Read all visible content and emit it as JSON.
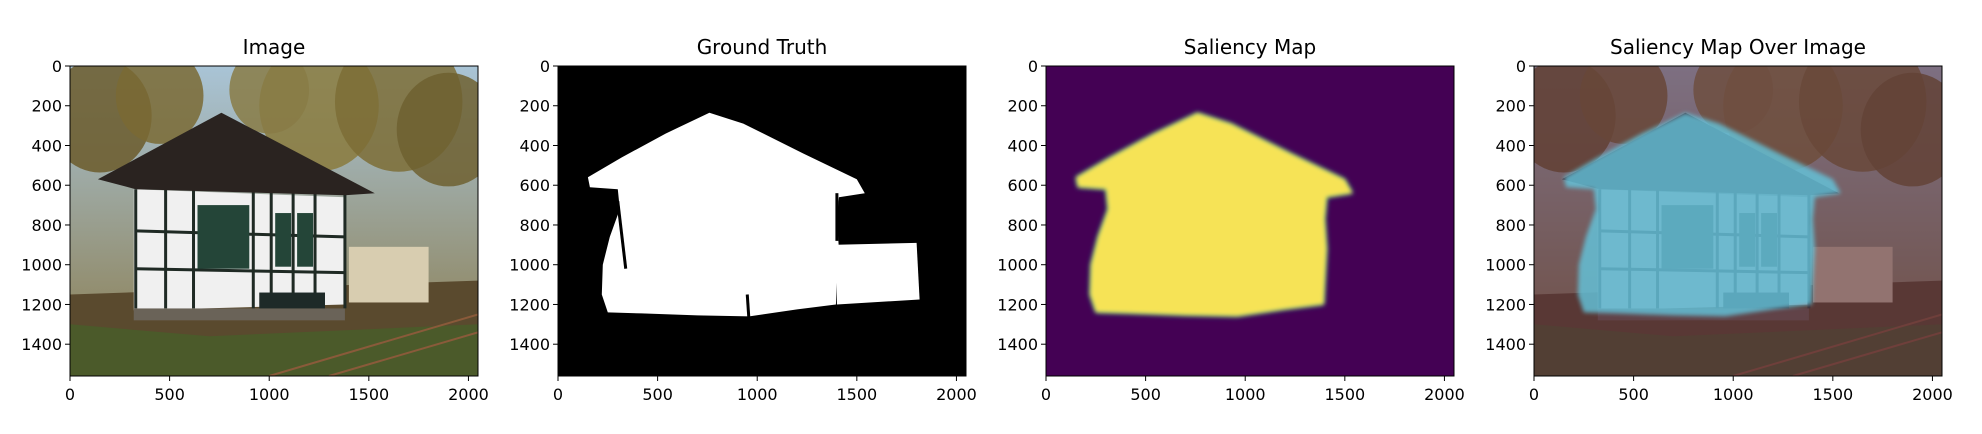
{
  "chart_data": [
    {
      "type": "heatmap",
      "title": "Image",
      "content": "photo",
      "xticks": [
        "0",
        "500",
        "1000",
        "1500",
        "2000"
      ],
      "yticks": [
        "0",
        "200",
        "400",
        "600",
        "800",
        "1000",
        "1200",
        "1400"
      ],
      "xlim": [
        0,
        2048
      ],
      "ylim": [
        1560,
        0
      ]
    },
    {
      "type": "heatmap",
      "title": "Ground Truth",
      "content": "mask",
      "colors": {
        "background": "#000000",
        "foreground": "#ffffff"
      },
      "xticks": [
        "0",
        "500",
        "1000",
        "1500",
        "2000"
      ],
      "yticks": [
        "0",
        "200",
        "400",
        "600",
        "800",
        "1000",
        "1200",
        "1400"
      ],
      "xlim": [
        0,
        2048
      ],
      "ylim": [
        1560,
        0
      ]
    },
    {
      "type": "heatmap",
      "title": "Saliency Map",
      "content": "saliency",
      "colors": {
        "low": "#440154",
        "high": "#f6e356",
        "edge": "#21918c"
      },
      "xticks": [
        "0",
        "500",
        "1000",
        "1500",
        "2000"
      ],
      "yticks": [
        "0",
        "200",
        "400",
        "600",
        "800",
        "1000",
        "1200",
        "1400"
      ],
      "xlim": [
        0,
        2048
      ],
      "ylim": [
        1560,
        0
      ]
    },
    {
      "type": "heatmap",
      "title": "Saliency Map Over Image",
      "content": "overlay",
      "colors": {
        "low": "#5a2a3c",
        "high": "#63c7df"
      },
      "xticks": [
        "0",
        "500",
        "1000",
        "1500",
        "2000"
      ],
      "yticks": [
        "0",
        "200",
        "400",
        "600",
        "800",
        "1000",
        "1200",
        "1400"
      ],
      "xlim": [
        0,
        2048
      ],
      "ylim": [
        1560,
        0
      ]
    }
  ]
}
